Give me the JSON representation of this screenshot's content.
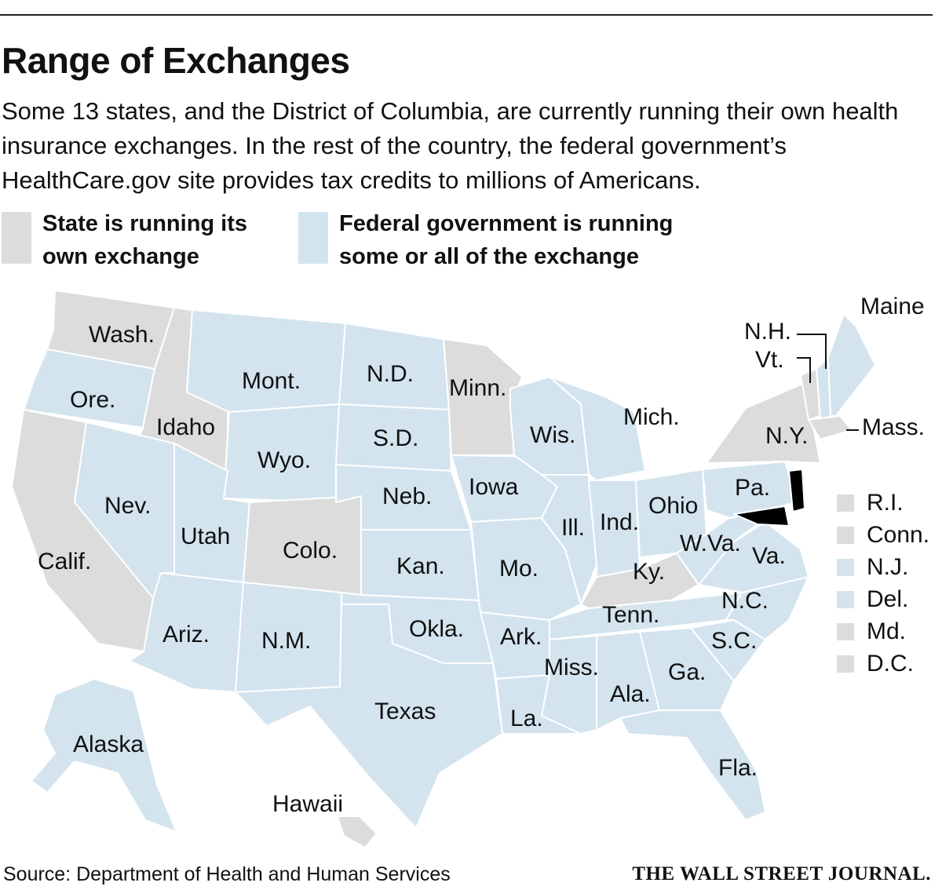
{
  "title": "Range of Exchanges",
  "subtitle": "Some 13 states, and the District of Columbia, are currently running their own health insurance exchanges. In the rest of the country, the federal government’s HealthCare.gov site provides tax credits to millions of Americans.",
  "colors": {
    "state_run": "#dcdcdc",
    "federal_run": "#d3e4ef"
  },
  "legend": {
    "state": {
      "line1": "State is running its",
      "line2": "own exchange"
    },
    "federal": {
      "line1": "Federal government is running",
      "line2": "some or all of the exchange"
    }
  },
  "states": {
    "wash": {
      "label": "Wash.",
      "category": "state"
    },
    "ore": {
      "label": "Ore.",
      "category": "federal"
    },
    "calif": {
      "label": "Calif.",
      "category": "state"
    },
    "idaho": {
      "label": "Idaho",
      "category": "state"
    },
    "nev": {
      "label": "Nev.",
      "category": "federal"
    },
    "mont": {
      "label": "Mont.",
      "category": "federal"
    },
    "wyo": {
      "label": "Wyo.",
      "category": "federal"
    },
    "utah": {
      "label": "Utah",
      "category": "federal"
    },
    "colo": {
      "label": "Colo.",
      "category": "state"
    },
    "ariz": {
      "label": "Ariz.",
      "category": "federal"
    },
    "nm": {
      "label": "N.M.",
      "category": "federal"
    },
    "nd": {
      "label": "N.D.",
      "category": "federal"
    },
    "sd": {
      "label": "S.D.",
      "category": "federal"
    },
    "neb": {
      "label": "Neb.",
      "category": "federal"
    },
    "kan": {
      "label": "Kan.",
      "category": "federal"
    },
    "okla": {
      "label": "Okla.",
      "category": "federal"
    },
    "texas": {
      "label": "Texas",
      "category": "federal"
    },
    "minn": {
      "label": "Minn.",
      "category": "state"
    },
    "iowa": {
      "label": "Iowa",
      "category": "federal"
    },
    "mo": {
      "label": "Mo.",
      "category": "federal"
    },
    "ark": {
      "label": "Ark.",
      "category": "federal"
    },
    "la": {
      "label": "La.",
      "category": "federal"
    },
    "wis": {
      "label": "Wis.",
      "category": "federal"
    },
    "ill": {
      "label": "Ill.",
      "category": "federal"
    },
    "mich": {
      "label": "Mich.",
      "category": "federal"
    },
    "ind": {
      "label": "Ind.",
      "category": "federal"
    },
    "ohio": {
      "label": "Ohio",
      "category": "federal"
    },
    "ky": {
      "label": "Ky.",
      "category": "state"
    },
    "tenn": {
      "label": "Tenn.",
      "category": "federal"
    },
    "miss": {
      "label": "Miss.",
      "category": "federal"
    },
    "ala": {
      "label": "Ala.",
      "category": "federal"
    },
    "ga": {
      "label": "Ga.",
      "category": "federal"
    },
    "fla": {
      "label": "Fla.",
      "category": "federal"
    },
    "sc": {
      "label": "S.C.",
      "category": "federal"
    },
    "nc": {
      "label": "N.C.",
      "category": "federal"
    },
    "va": {
      "label": "Va.",
      "category": "federal"
    },
    "wva": {
      "label": "W.Va.",
      "category": "federal"
    },
    "pa": {
      "label": "Pa.",
      "category": "federal"
    },
    "ny": {
      "label": "N.Y.",
      "category": "state"
    },
    "vt": {
      "label": "Vt.",
      "category": "state"
    },
    "nh": {
      "label": "N.H.",
      "category": "federal"
    },
    "maine": {
      "label": "Maine",
      "category": "federal"
    },
    "mass": {
      "label": "Mass.",
      "category": "state"
    },
    "alaska": {
      "label": "Alaska",
      "category": "federal"
    },
    "hawaii": {
      "label": "Hawaii",
      "category": "state"
    }
  },
  "small_states": [
    {
      "label": "R.I.",
      "category": "state"
    },
    {
      "label": "Conn.",
      "category": "state"
    },
    {
      "label": "N.J.",
      "category": "federal"
    },
    {
      "label": "Del.",
      "category": "federal"
    },
    {
      "label": "Md.",
      "category": "state"
    },
    {
      "label": "D.C.",
      "category": "state"
    }
  ],
  "source": "Source: Department of Health and Human Services",
  "brand": "THE WALL STREET JOURNAL."
}
